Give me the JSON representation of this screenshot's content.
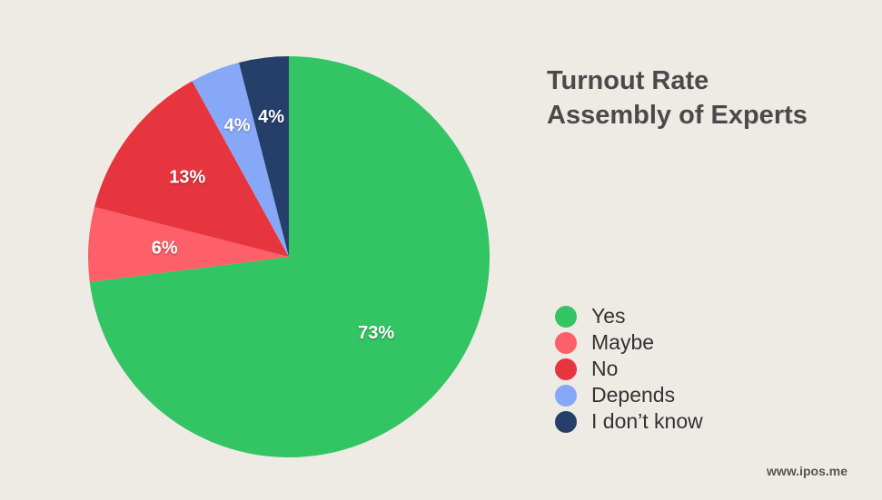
{
  "chart_data": {
    "type": "pie",
    "title": "Turnout Rate",
    "subtitle": "Assembly of Experts",
    "categories": [
      "Yes",
      "Maybe",
      "No",
      "Depends",
      "I don’t know"
    ],
    "values": [
      73,
      6,
      13,
      4,
      4
    ],
    "value_labels": [
      "73%",
      "6%",
      "13%",
      "4%",
      "4%"
    ],
    "colors": [
      "#33c463",
      "#fd6068",
      "#e7353f",
      "#87a8f6",
      "#253f6a"
    ],
    "start": "12 o'clock",
    "direction": "clockwise",
    "legend_position": "right"
  },
  "legend": {
    "items": [
      {
        "label": "Yes",
        "color": "#33c463"
      },
      {
        "label": "Maybe",
        "color": "#fd6068"
      },
      {
        "label": "No",
        "color": "#e7353f"
      },
      {
        "label": "Depends",
        "color": "#87a8f6"
      },
      {
        "label": "I don’t know",
        "color": "#253f6a"
      }
    ]
  },
  "footer": {
    "source": "www.ipos.me"
  }
}
